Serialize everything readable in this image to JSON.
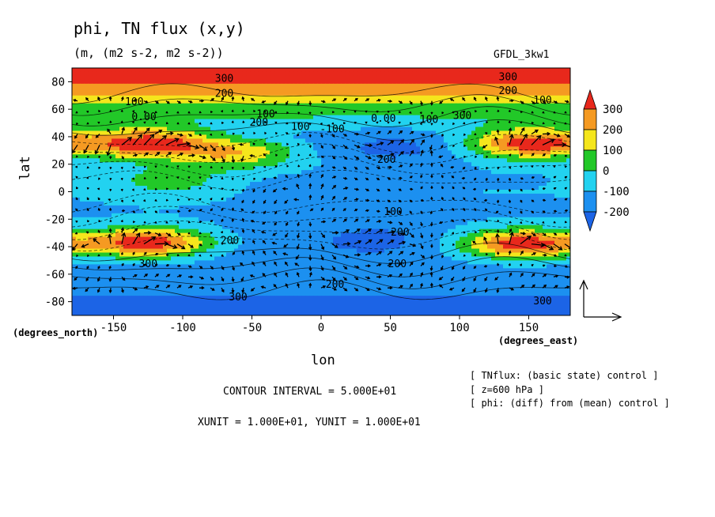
{
  "chart_data": {
    "type": "heatmap",
    "title": "phi, TN flux (x,y)",
    "subtitle": "(m, (m2 s-2, m2 s-2))",
    "model_label": "GFDL_3kw1",
    "xlabel": "lon",
    "xlabel_units": "(degrees_east)",
    "ylabel": "lat",
    "ylabel_units": "(degrees_north)",
    "xlim": [
      -180,
      180
    ],
    "ylim": [
      -90,
      90
    ],
    "x_ticks": [
      -150,
      -100,
      -50,
      0,
      50,
      100,
      150
    ],
    "y_ticks": [
      -80,
      -60,
      -40,
      -20,
      0,
      20,
      40,
      60,
      80
    ],
    "x_tick_labels": [
      "-150",
      "-100",
      "-50",
      "0",
      "50",
      "100",
      "150"
    ],
    "y_tick_labels": [
      "-80",
      "-60",
      "-40",
      "-20",
      "0",
      "20",
      "40",
      "60",
      "80"
    ],
    "colorbar": {
      "levels": [
        -250,
        -200,
        -100,
        0,
        100,
        200,
        300,
        350
      ],
      "labels": [
        "300",
        "200",
        "100",
        "0",
        "-100",
        "-200"
      ],
      "colors": [
        "#e8281c",
        "#f59a22",
        "#f5e61c",
        "#22c828",
        "#22d2f0",
        "#1c90f0",
        "#1c64e6"
      ]
    },
    "bands": [
      {
        "lat": 90,
        "value": 300
      },
      {
        "lat": 80,
        "value": 310
      },
      {
        "lat": 72,
        "value": 220
      },
      {
        "lat": 64,
        "value": 110
      },
      {
        "lat": 56,
        "value": 20
      },
      {
        "lat": 50,
        "value": -50
      },
      {
        "lat": 40,
        "value": -140
      },
      {
        "lat": 28,
        "value": -150
      },
      {
        "lat": 15,
        "value": -110
      },
      {
        "lat": 0,
        "value": -100
      },
      {
        "lat": -15,
        "value": -110
      },
      {
        "lat": -28,
        "value": -150
      },
      {
        "lat": -42,
        "value": -160
      },
      {
        "lat": -58,
        "value": -150
      },
      {
        "lat": -70,
        "value": -150
      },
      {
        "lat": -82,
        "value": -250
      },
      {
        "lat": -90,
        "value": -250
      }
    ],
    "anomalies": [
      {
        "lon": -125,
        "lat": 35,
        "value": 370
      },
      {
        "lon": -125,
        "lat": -37,
        "value": 370
      },
      {
        "lon": 150,
        "lat": 35,
        "value": 360
      },
      {
        "lon": 145,
        "lat": -38,
        "value": 360
      },
      {
        "lon": -110,
        "lat": 8,
        "value": 40
      },
      {
        "lon": -40,
        "lat": 12,
        "value": -110
      },
      {
        "lon": 55,
        "lat": 32,
        "value": -230
      },
      {
        "lon": 40,
        "lat": -35,
        "value": -230
      },
      {
        "lon": -10,
        "lat": 0,
        "value": -170
      },
      {
        "lon": -60,
        "lat": 28,
        "value": 160
      }
    ],
    "contour_labels": [
      {
        "text": "300",
        "lon": -70,
        "lat": 80
      },
      {
        "text": "200",
        "lon": -70,
        "lat": 69
      },
      {
        "text": "100",
        "lon": -135,
        "lat": 63
      },
      {
        "text": "0.00",
        "lon": -128,
        "lat": 52
      },
      {
        "text": "100",
        "lon": -40,
        "lat": 54
      },
      {
        "text": "200",
        "lon": -45,
        "lat": 48
      },
      {
        "text": "100",
        "lon": -15,
        "lat": 45
      },
      {
        "text": "-100",
        "lon": 8,
        "lat": 43
      },
      {
        "text": "-200",
        "lon": 45,
        "lat": 21
      },
      {
        "text": "0.00",
        "lon": 45,
        "lat": 51
      },
      {
        "text": "100",
        "lon": 78,
        "lat": 50
      },
      {
        "text": "300",
        "lon": 102,
        "lat": 53
      },
      {
        "text": "300",
        "lon": 135,
        "lat": 81
      },
      {
        "text": "200",
        "lon": 135,
        "lat": 71
      },
      {
        "text": "100",
        "lon": 160,
        "lat": 64
      },
      {
        "text": "200",
        "lon": -66,
        "lat": -38
      },
      {
        "text": "300",
        "lon": -125,
        "lat": -55
      },
      {
        "text": "100",
        "lon": 52,
        "lat": -17
      },
      {
        "text": "200",
        "lon": 57,
        "lat": -32
      },
      {
        "text": "200",
        "lon": 55,
        "lat": -55
      },
      {
        "text": "200",
        "lon": 10,
        "lat": -70
      },
      {
        "text": "300",
        "lon": -60,
        "lat": -79
      },
      {
        "text": "300",
        "lon": 160,
        "lat": -82
      }
    ],
    "vector_reference": "XUNIT = 1.000E+01, YUNIT = 1.000E+01",
    "contour_interval": "CONTOUR INTERVAL = 5.000E+01",
    "notes": [
      "[ TNflux: (basic state) control ]",
      "[ z=600 hPa ]",
      "[ phi: (diff) from (mean) control ]"
    ]
  }
}
